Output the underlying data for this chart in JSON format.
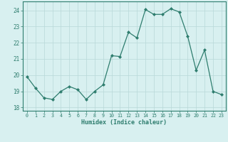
{
  "x": [
    0,
    1,
    2,
    3,
    4,
    5,
    6,
    7,
    8,
    9,
    10,
    11,
    12,
    13,
    14,
    15,
    16,
    17,
    18,
    19,
    20,
    21,
    22,
    23
  ],
  "y": [
    19.9,
    19.2,
    18.6,
    18.5,
    19.0,
    19.3,
    19.1,
    18.5,
    19.0,
    19.4,
    21.2,
    21.15,
    22.65,
    22.3,
    24.05,
    23.75,
    23.75,
    24.1,
    23.9,
    22.4,
    20.3,
    21.55,
    19.0,
    18.8
  ],
  "line_color": "#2e7d6e",
  "marker": "D",
  "marker_size": 2,
  "bg_color": "#d8f0f0",
  "grid_color": "#b8d8d8",
  "tick_color": "#2e7d6e",
  "xlabel": "Humidex (Indice chaleur)",
  "ylabel_ticks": [
    18,
    19,
    20,
    21,
    22,
    23,
    24
  ],
  "ylim": [
    17.8,
    24.55
  ],
  "xlim": [
    -0.5,
    23.5
  ],
  "title": ""
}
